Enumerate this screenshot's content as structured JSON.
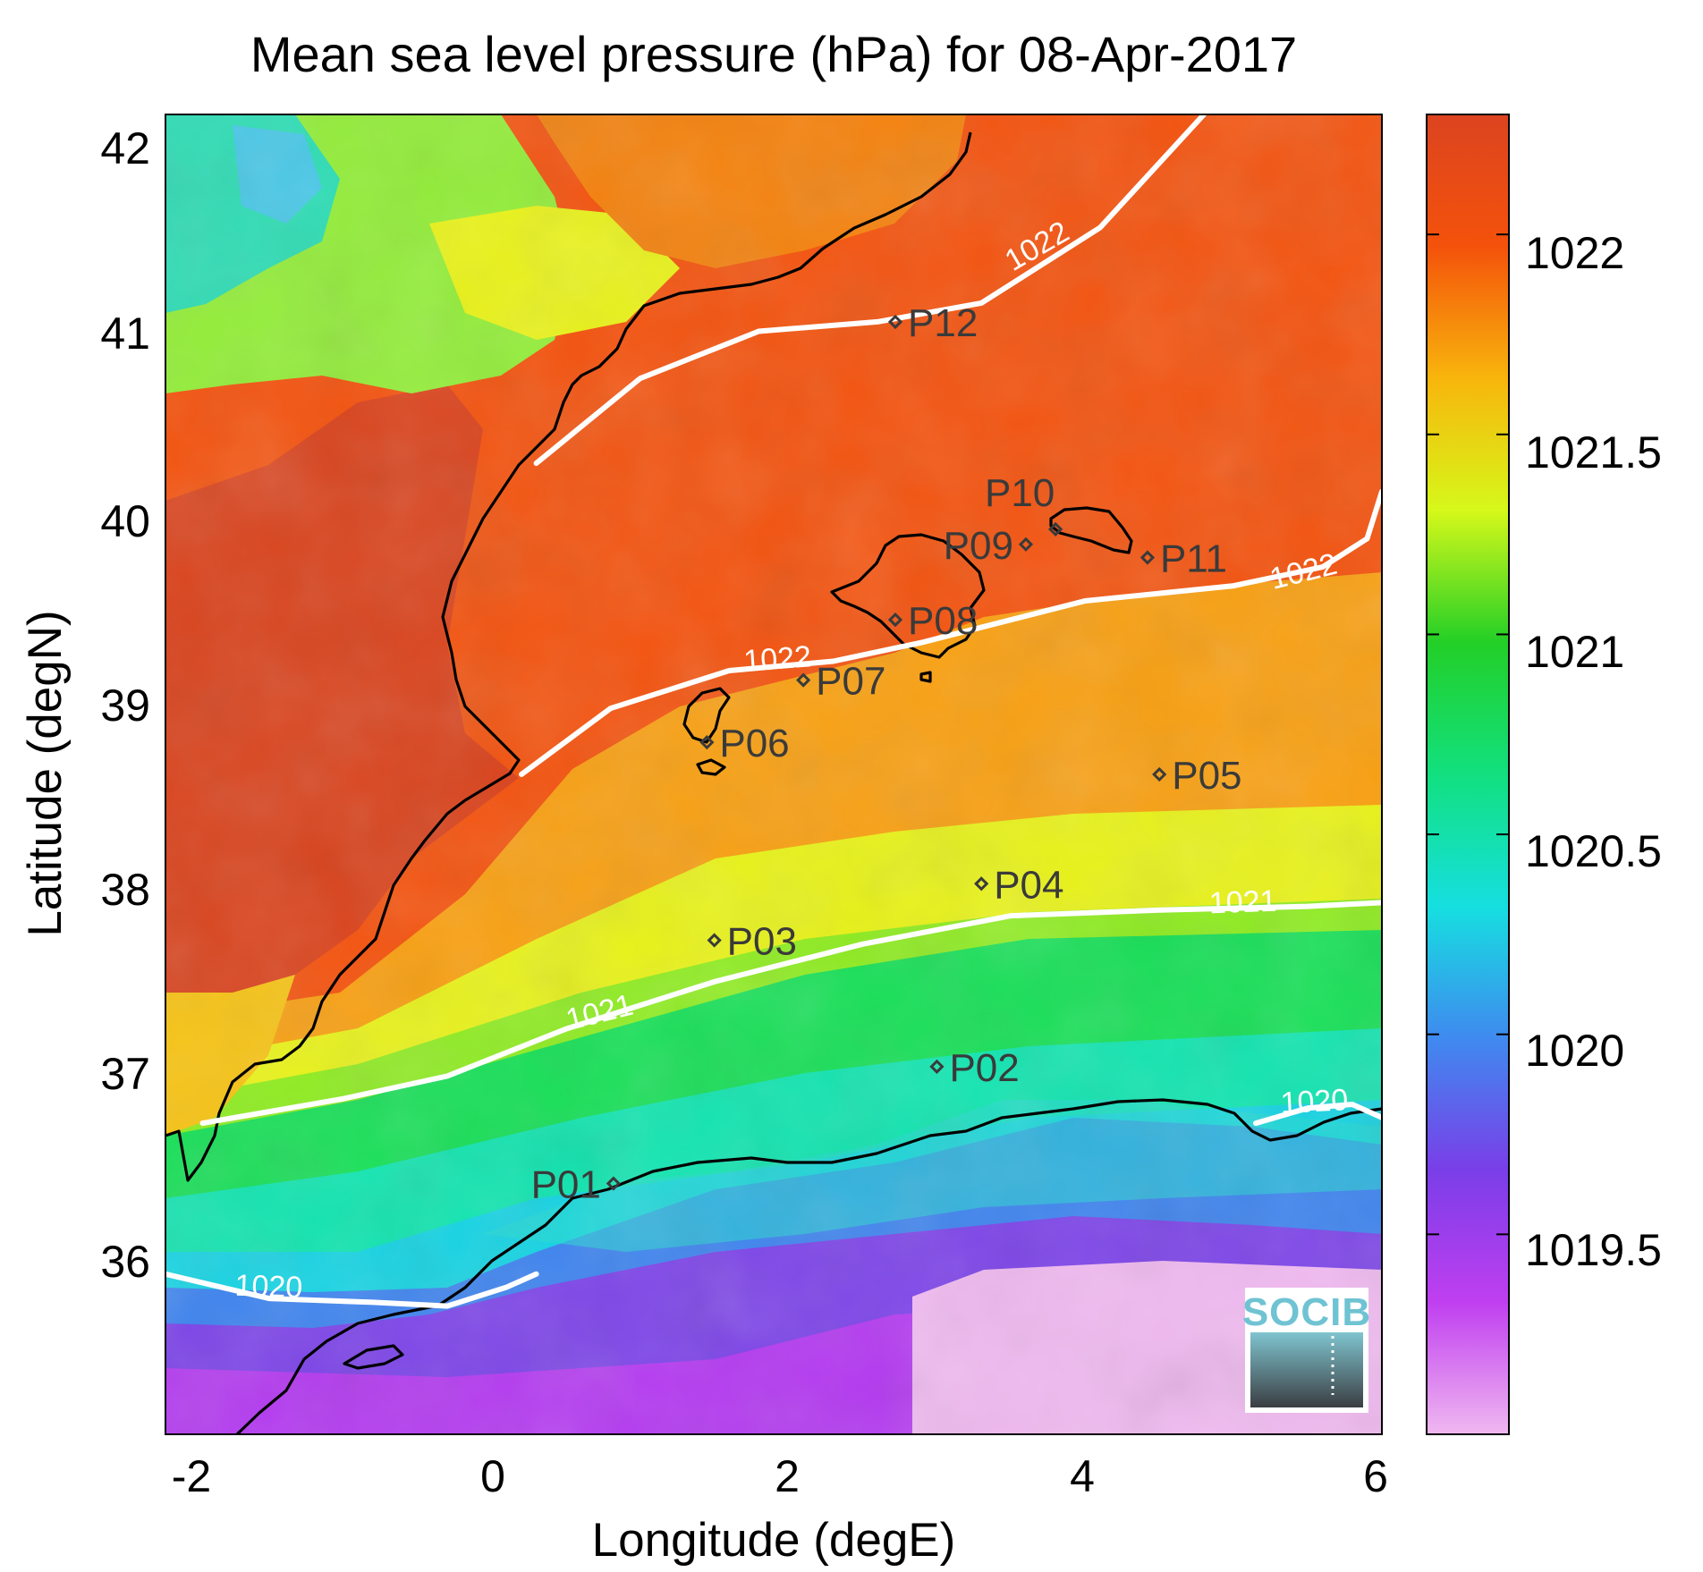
{
  "title": "Mean sea level pressure (hPa) for 08-Apr-2017",
  "xlabel": "Longitude (degE)",
  "ylabel": "Latitude (degN)",
  "x_ticks": [
    "-2",
    "0",
    "2",
    "4",
    "6"
  ],
  "y_ticks": [
    "42",
    "41",
    "40",
    "39",
    "38",
    "37",
    "36"
  ],
  "colorbar_ticks": [
    "1022",
    "1021.5",
    "1021",
    "1020.5",
    "1020",
    "1019.5"
  ],
  "colorbar_colors": [
    "#f0b8f0",
    "#c03ff0",
    "#7a3ee8",
    "#3f8aef",
    "#16dfe0",
    "#12e07f",
    "#23cf27",
    "#d6f81a",
    "#f8b50c",
    "#f4520b",
    "#dc4420"
  ],
  "contour_labels": [
    "1022",
    "1022",
    "1022",
    "1021",
    "1021",
    "1020",
    "1020"
  ],
  "stations": [
    {
      "id": "P01",
      "lon": 0.82,
      "lat": 36.53
    },
    {
      "id": "P02",
      "lon": 3.0,
      "lat": 37.15
    },
    {
      "id": "P03",
      "lon": 1.5,
      "lat": 37.82
    },
    {
      "id": "P04",
      "lon": 3.3,
      "lat": 38.12
    },
    {
      "id": "P05",
      "lon": 4.5,
      "lat": 38.7
    },
    {
      "id": "P06",
      "lon": 1.45,
      "lat": 38.87
    },
    {
      "id": "P07",
      "lon": 2.1,
      "lat": 39.2
    },
    {
      "id": "P08",
      "lon": 2.72,
      "lat": 39.52
    },
    {
      "id": "P09",
      "lon": 3.6,
      "lat": 39.92
    },
    {
      "id": "P10",
      "lon": 3.8,
      "lat": 40.0
    },
    {
      "id": "P11",
      "lon": 4.42,
      "lat": 39.85
    },
    {
      "id": "P12",
      "lon": 2.72,
      "lat": 41.1
    }
  ],
  "logo": "SOCIB",
  "chart_data": {
    "type": "heatmap",
    "title": "Mean sea level pressure (hPa) for 08-Apr-2017",
    "xlabel": "Longitude (degE)",
    "ylabel": "Latitude (degN)",
    "xlim": [
      -2.2,
      6.0
    ],
    "ylim": [
      35.2,
      42.2
    ],
    "colorbar_range": [
      1019.0,
      1022.3
    ],
    "contour_levels": [
      1020,
      1021,
      1022
    ],
    "contours": [
      {
        "level": 1022,
        "points": [
          [
            0.3,
            40.35
          ],
          [
            1.0,
            40.8
          ],
          [
            1.8,
            41.05
          ],
          [
            2.6,
            41.1
          ],
          [
            3.3,
            41.2
          ],
          [
            4.1,
            41.6
          ],
          [
            4.8,
            42.2
          ]
        ]
      },
      {
        "level": 1022,
        "points": [
          [
            0.2,
            38.7
          ],
          [
            0.8,
            39.05
          ],
          [
            1.6,
            39.25
          ],
          [
            2.3,
            39.3
          ],
          [
            2.9,
            39.4
          ],
          [
            3.4,
            39.5
          ],
          [
            4.0,
            39.62
          ],
          [
            5.0,
            39.7
          ],
          [
            5.6,
            39.8
          ],
          [
            5.9,
            39.95
          ],
          [
            6.0,
            40.2
          ]
        ]
      },
      {
        "level": 1021,
        "points": [
          [
            -1.95,
            36.85
          ],
          [
            -1.0,
            36.98
          ],
          [
            -0.3,
            37.1
          ],
          [
            0.5,
            37.35
          ],
          [
            1.5,
            37.6
          ],
          [
            2.5,
            37.8
          ],
          [
            3.5,
            37.95
          ],
          [
            4.5,
            37.98
          ],
          [
            5.5,
            38.0
          ],
          [
            6.0,
            38.02
          ]
        ]
      },
      {
        "level": 1020,
        "points": [
          [
            -2.2,
            36.05
          ],
          [
            -1.5,
            35.92
          ],
          [
            -0.8,
            35.9
          ],
          [
            -0.3,
            35.88
          ],
          [
            0.1,
            35.98
          ],
          [
            0.3,
            36.05
          ]
        ]
      },
      {
        "level": 1020,
        "points": [
          [
            5.15,
            36.85
          ],
          [
            5.5,
            36.93
          ],
          [
            5.8,
            36.95
          ],
          [
            6.0,
            36.88
          ]
        ]
      }
    ],
    "markers": [
      {
        "name": "P01",
        "x": 0.82,
        "y": 36.53
      },
      {
        "name": "P02",
        "x": 3.0,
        "y": 37.15
      },
      {
        "name": "P03",
        "x": 1.5,
        "y": 37.82
      },
      {
        "name": "P04",
        "x": 3.3,
        "y": 38.12
      },
      {
        "name": "P05",
        "x": 4.5,
        "y": 38.7
      },
      {
        "name": "P06",
        "x": 1.45,
        "y": 38.87
      },
      {
        "name": "P07",
        "x": 2.1,
        "y": 39.2
      },
      {
        "name": "P08",
        "x": 2.72,
        "y": 39.52
      },
      {
        "name": "P09",
        "x": 3.6,
        "y": 39.92
      },
      {
        "name": "P10",
        "x": 3.8,
        "y": 40.0
      },
      {
        "name": "P11",
        "x": 4.42,
        "y": 39.85
      },
      {
        "name": "P12",
        "x": 2.72,
        "y": 41.1
      }
    ]
  }
}
